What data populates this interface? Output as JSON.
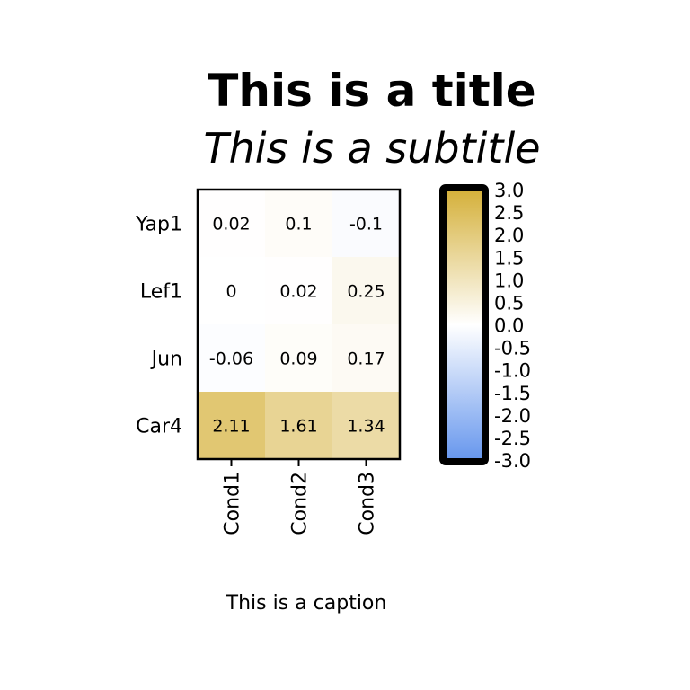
{
  "chart_data": {
    "type": "heatmap",
    "title": "This is a title",
    "subtitle": "This is a subtitle",
    "caption": "This is a caption",
    "rows": [
      "Yap1",
      "Lef1",
      "Jun",
      "Car4"
    ],
    "columns": [
      "Cond1",
      "Cond2",
      "Cond3"
    ],
    "values": [
      [
        0.02,
        0.1,
        -0.1
      ],
      [
        0,
        0.02,
        0.25
      ],
      [
        -0.06,
        0.09,
        0.17
      ],
      [
        2.11,
        1.61,
        1.34
      ]
    ],
    "cell_labels": [
      [
        "0.02",
        "0.1",
        "-0.1"
      ],
      [
        "0",
        "0.02",
        "0.25"
      ],
      [
        "-0.06",
        "0.09",
        "0.17"
      ],
      [
        "2.11",
        "1.61",
        "1.34"
      ]
    ],
    "color_scale": {
      "range": [
        -3,
        3
      ],
      "low_color": "#6495ED",
      "mid_color": "#FFFFFF",
      "high_color": "#D4AF37",
      "ticks": [
        "3.0",
        "2.5",
        "2.0",
        "1.5",
        "1.0",
        "0.5",
        "0.0",
        "-0.5",
        "-1.0",
        "-1.5",
        "-2.0",
        "-2.5",
        "-3.0"
      ]
    },
    "legend_position": "right"
  }
}
